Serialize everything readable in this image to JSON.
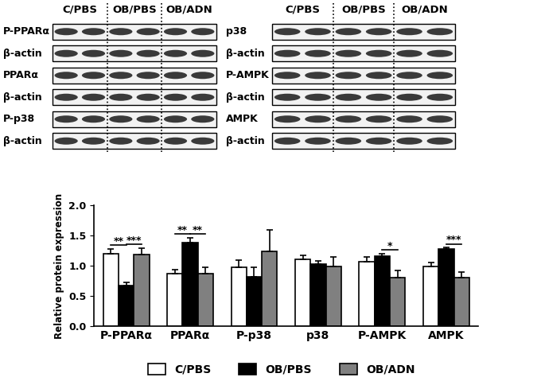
{
  "blots": {
    "groups": [
      "C/PBS",
      "OB/PBS",
      "OB/ADN"
    ],
    "left_rows": [
      "P-PPARα",
      "β-actin",
      "PPARα",
      "β-actin",
      "P-p38",
      "β-actin"
    ],
    "right_rows": [
      "p38",
      "β-actin",
      "P-AMPK",
      "β-actin",
      "AMPK",
      "β-actin"
    ]
  },
  "chart_data": {
    "type": "bar",
    "y_label": "Relative protein expression",
    "categories": [
      "P-PPARα",
      "PPARα",
      "P-p38",
      "p38",
      "P-AMPK",
      "AMPK"
    ],
    "series": [
      {
        "name": "C/PBS",
        "color": "#ffffff",
        "values": [
          1.2,
          0.87,
          0.97,
          1.1,
          1.06,
          0.98
        ],
        "errors": [
          0.08,
          0.06,
          0.12,
          0.07,
          0.08,
          0.07
        ]
      },
      {
        "name": "OB/PBS",
        "color": "#000000",
        "values": [
          0.67,
          1.38,
          0.81,
          1.03,
          1.16,
          1.27
        ],
        "errors": [
          0.05,
          0.08,
          0.16,
          0.05,
          0.04,
          0.03
        ]
      },
      {
        "name": "OB/ADN",
        "color": "#808080",
        "values": [
          1.19,
          0.87,
          1.24,
          0.99,
          0.8,
          0.8
        ],
        "errors": [
          0.1,
          0.1,
          0.35,
          0.15,
          0.12,
          0.1
        ]
      }
    ],
    "significance": [
      {
        "category": "P-PPARα",
        "between": [
          "C/PBS",
          "OB/PBS"
        ],
        "label": "**"
      },
      {
        "category": "P-PPARα",
        "between": [
          "OB/PBS",
          "OB/ADN"
        ],
        "label": "***"
      },
      {
        "category": "PPARα",
        "between": [
          "C/PBS",
          "OB/PBS"
        ],
        "label": "**"
      },
      {
        "category": "PPARα",
        "between": [
          "OB/PBS",
          "OB/ADN"
        ],
        "label": "**"
      },
      {
        "category": "P-AMPK",
        "between": [
          "OB/PBS",
          "OB/ADN"
        ],
        "label": "*"
      },
      {
        "category": "AMPK",
        "between": [
          "OB/PBS",
          "OB/ADN"
        ],
        "label": "***"
      }
    ],
    "ylim": [
      0,
      2.0
    ],
    "yticks": [
      {
        "value": 0,
        "label": "0.0"
      },
      {
        "value": 0.5,
        "label": "0.5"
      },
      {
        "value": 1.0,
        "label": "1.0"
      },
      {
        "value": 1.5,
        "label": "1.5"
      },
      {
        "value": 2.0,
        "label": "2.0"
      }
    ],
    "legend": "lower center",
    "grid": false
  }
}
